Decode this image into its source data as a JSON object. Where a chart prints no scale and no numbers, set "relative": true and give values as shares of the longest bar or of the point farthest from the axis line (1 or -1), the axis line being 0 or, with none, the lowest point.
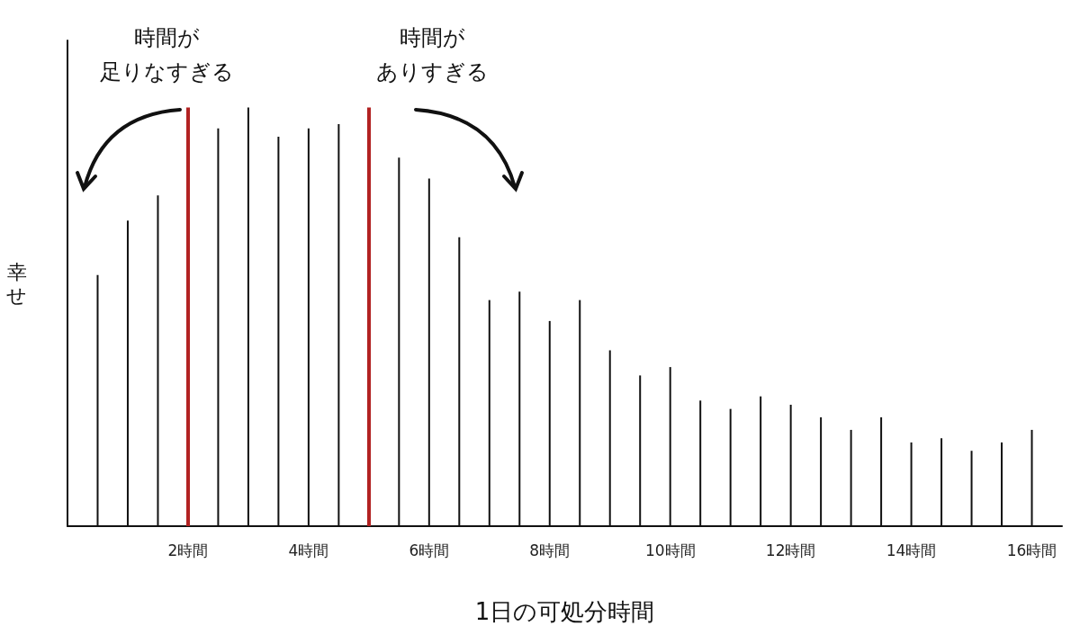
{
  "chart_data": {
    "type": "bar",
    "xlabel": "1日の可処分時間",
    "ylabel": "幸せ",
    "relative": true,
    "color": "#111111",
    "x": [
      0.5,
      1,
      1.5,
      2.5,
      3,
      3.5,
      4,
      4.5,
      5.5,
      6,
      6.5,
      7,
      7.5,
      8,
      8.5,
      9,
      9.5,
      10,
      10.5,
      11,
      11.5,
      12,
      12.5,
      13,
      13.5,
      14,
      14.5,
      15,
      15.5,
      16
    ],
    "values": [
      0.6,
      0.73,
      0.79,
      0.95,
      1,
      0.93,
      0.95,
      0.96,
      0.88,
      0.83,
      0.69,
      0.54,
      0.56,
      0.49,
      0.54,
      0.42,
      0.36,
      0.38,
      0.3,
      0.28,
      0.31,
      0.29,
      0.26,
      0.23,
      0.26,
      0.2,
      0.21,
      0.18,
      0.2,
      0.23
    ],
    "xlim": [
      0,
      16.5
    ],
    "xticks": [
      {
        "value": 2,
        "label": "2時間"
      },
      {
        "value": 4,
        "label": "4時間"
      },
      {
        "value": 6,
        "label": "6時間"
      },
      {
        "value": 8,
        "label": "8時間"
      },
      {
        "value": 10,
        "label": "10時間"
      },
      {
        "value": 12,
        "label": "12時間"
      },
      {
        "value": 14,
        "label": "14時間"
      },
      {
        "value": 16,
        "label": "16時間"
      }
    ],
    "ref_lines": [
      {
        "axis": "x",
        "value": 2,
        "color": "#b22222"
      },
      {
        "axis": "x",
        "value": 5,
        "color": "#b22222"
      }
    ],
    "annotations": [
      "時間が",
      "足りなすぎる",
      "時間が",
      "ありすぎる"
    ],
    "grid": false
  }
}
